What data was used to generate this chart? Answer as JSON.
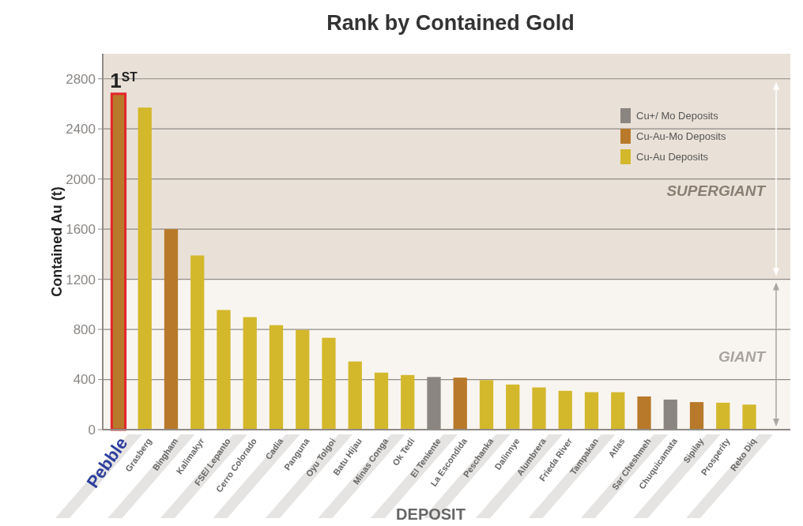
{
  "chart_data": {
    "type": "bar",
    "title": "Rank by Contained Gold",
    "xlabel": "DEPOSIT",
    "ylabel": "Contained Au (t)",
    "categories": [
      "Pebble",
      "Grasberg",
      "Bingham",
      "Kalimakyr",
      "FSE/ Lepanto",
      "Cerro Colorado",
      "Cadia",
      "Panguna",
      "Oyu Tolgoi",
      "Batu Hijau",
      "Minas Conga",
      "Ok Tedi",
      "El Teniente",
      "La Escondida",
      "Peschanka",
      "Dalinnye",
      "Alumbrera",
      "Frieda River",
      "Tampakan",
      "Atlas",
      "Sar Cheshmeh",
      "Chuquicamata",
      "Sipilay",
      "Prosperity",
      "Reko Diq"
    ],
    "series": [
      {
        "name": "Cu+/ Mo Deposits",
        "color": "#8a8580",
        "values": [
          null,
          null,
          null,
          null,
          null,
          null,
          null,
          null,
          null,
          null,
          null,
          null,
          420,
          null,
          null,
          null,
          null,
          null,
          null,
          null,
          null,
          240,
          null,
          null,
          null
        ]
      },
      {
        "name": "Cu-Au-Mo Deposits",
        "color": "#b87a2a",
        "values": [
          2680,
          null,
          1600,
          null,
          null,
          null,
          null,
          null,
          null,
          null,
          null,
          null,
          null,
          415,
          null,
          null,
          null,
          null,
          null,
          null,
          265,
          null,
          220,
          null,
          null
        ]
      },
      {
        "name": "Cu-Au Deposits",
        "color": "#d4b82c",
        "values": [
          null,
          2570,
          null,
          1390,
          955,
          898,
          834,
          796,
          733,
          544,
          455,
          436,
          null,
          null,
          395,
          360,
          337,
          310,
          299,
          299,
          null,
          null,
          null,
          215,
          200
        ]
      }
    ],
    "ylim": [
      0,
      3000
    ],
    "yticks": [
      0,
      400,
      800,
      1200,
      1600,
      2000,
      2400,
      2800
    ],
    "grid": "y",
    "legend": "top right",
    "bands": [
      {
        "axis": "y",
        "from": 1200,
        "to": 3000,
        "label": "SUPERGIANT",
        "color": "#e9e1d7"
      },
      {
        "axis": "y",
        "from": 0,
        "to": 1200,
        "label": "GIANT",
        "color": "#f8f5f1"
      }
    ],
    "annotations": [
      {
        "text": "1$^{ST}$",
        "x": "Pebble",
        "y": 2680
      }
    ]
  }
}
